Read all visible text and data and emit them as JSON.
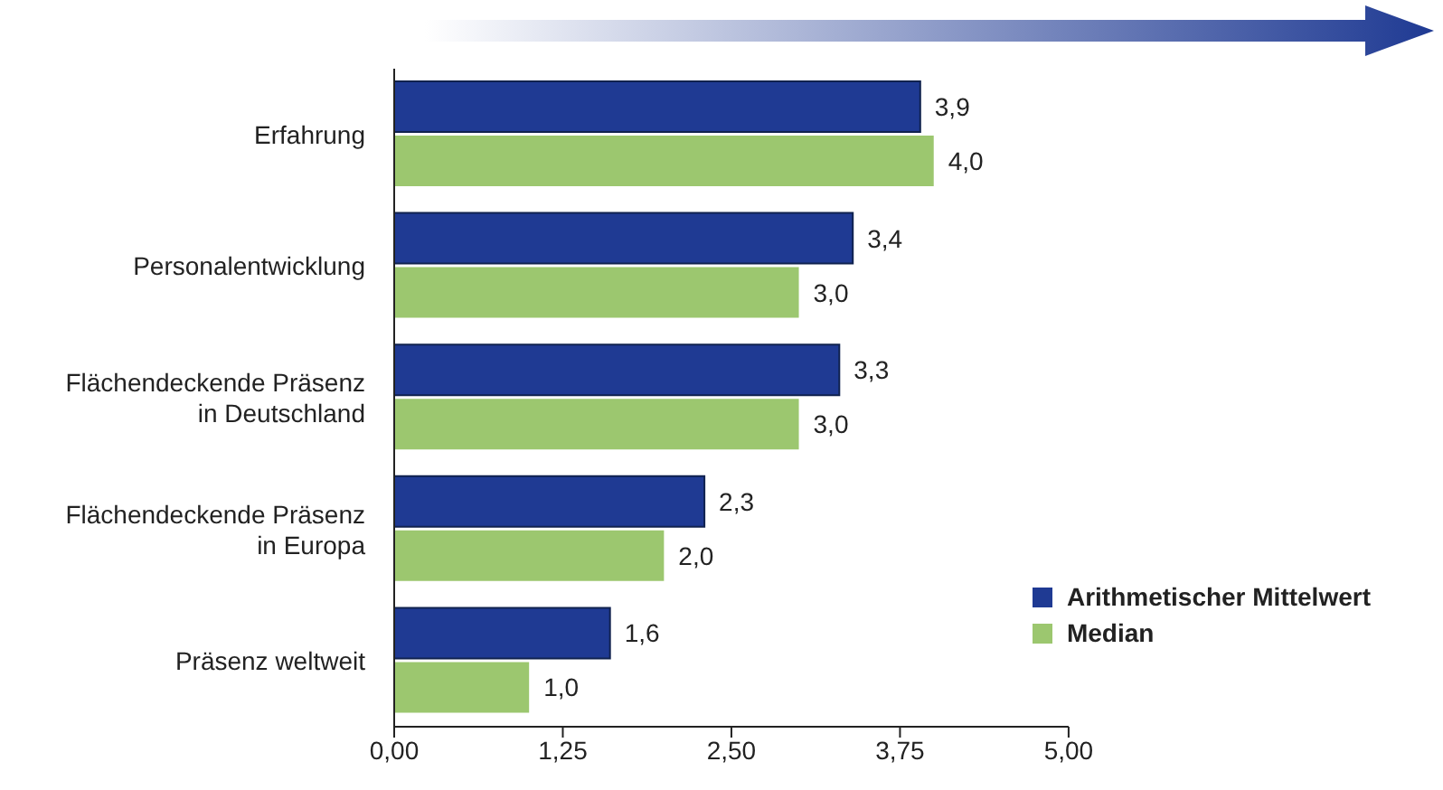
{
  "chart_data": {
    "type": "bar",
    "orientation": "horizontal",
    "categories": [
      "Erfahrung",
      "Personalentwicklung",
      "Flächendeckende Präsenz in Deutschland",
      "Flächendeckende Präsenz in Europa",
      "Präsenz weltweit"
    ],
    "series": [
      {
        "name": "Arithmetischer Mittelwert",
        "color": "#1f3a93",
        "values": [
          3.9,
          3.4,
          3.3,
          2.3,
          1.6
        ],
        "value_labels": [
          "3,9",
          "3,4",
          "3,3",
          "2,3",
          "1,6"
        ]
      },
      {
        "name": "Median",
        "color": "#9cc76f",
        "values": [
          4.0,
          3.0,
          3.0,
          2.0,
          1.0
        ],
        "value_labels": [
          "4,0",
          "3,0",
          "3,0",
          "2,0",
          "1,0"
        ]
      }
    ],
    "xlim": [
      0,
      5
    ],
    "xticks": [
      {
        "value": 0,
        "label": "0,00"
      },
      {
        "value": 1.25,
        "label": "1,25"
      },
      {
        "value": 2.5,
        "label": "2,50"
      },
      {
        "value": 3.75,
        "label": "3,75"
      },
      {
        "value": 5,
        "label": "5,00"
      }
    ],
    "grid": false,
    "legend": "bottom right"
  }
}
